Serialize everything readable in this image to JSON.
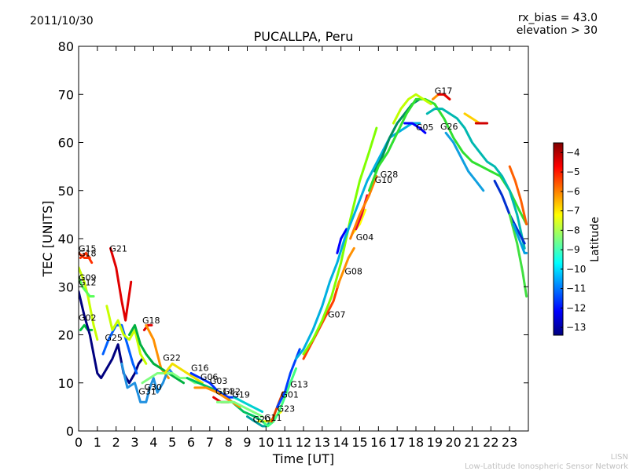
{
  "header": {
    "date": "2011/10/30",
    "rx_bias": "rx_bias = 43.0",
    "elevation": "elevation > 30"
  },
  "footer": {
    "line1": "LISN",
    "line2": "Low-Latitude Ionospheric Sensor Network"
  },
  "colorbar": {
    "label": "Latitude",
    "ticks": [
      "−4",
      "−5",
      "−6",
      "−7",
      "−8",
      "−9",
      "−10",
      "−11",
      "−12",
      "−13"
    ],
    "tick_values": [
      -4,
      -5,
      -6,
      -7,
      -8,
      -9,
      -10,
      -11,
      -12,
      -13
    ],
    "range": [
      -13.4,
      -3.5
    ],
    "colormap": [
      "#00007f",
      "#0000ff",
      "#007fff",
      "#00ffff",
      "#7fff7f",
      "#ffff00",
      "#ff7f00",
      "#ff0000",
      "#7f0000"
    ]
  },
  "chart_data": {
    "type": "line",
    "title": "PUCALLPA, Peru",
    "xlabel": "Time [UT]",
    "ylabel": "TEC [UNITS]",
    "xlim": [
      0,
      24
    ],
    "ylim": [
      0,
      80
    ],
    "x_ticks": [
      "0",
      "1",
      "2",
      "3",
      "4",
      "5",
      "6",
      "7",
      "8",
      "9",
      "10",
      "11",
      "12",
      "13",
      "14",
      "15",
      "16",
      "17",
      "18",
      "19",
      "20",
      "21",
      "22",
      "23"
    ],
    "x_tick_values": [
      0,
      1,
      2,
      3,
      4,
      5,
      6,
      7,
      8,
      9,
      10,
      11,
      12,
      13,
      14,
      15,
      16,
      17,
      18,
      19,
      20,
      21,
      22,
      23
    ],
    "y_ticks": [
      "0",
      "10",
      "20",
      "30",
      "40",
      "50",
      "60",
      "70",
      "80"
    ],
    "y_tick_values": [
      0,
      10,
      20,
      30,
      40,
      50,
      60,
      70,
      80
    ],
    "grid": false,
    "series": [
      {
        "name": "G15",
        "color": "#ff3000",
        "x": [
          0.0,
          0.3,
          0.6
        ],
        "y": [
          37,
          36,
          36
        ]
      },
      {
        "name": "G18",
        "color": "#ff3000",
        "x": [
          0.1,
          0.4,
          0.7
        ],
        "y": [
          36,
          37,
          35
        ]
      },
      {
        "name": "G21",
        "color": "#e00000",
        "x": [
          1.7,
          2.0,
          2.3,
          2.5,
          2.8
        ],
        "y": [
          38,
          34,
          27,
          23,
          31
        ]
      },
      {
        "name": "G09",
        "color": "#c8ff00",
        "x": [
          0.0,
          0.3,
          0.5,
          0.8,
          1.0
        ],
        "y": [
          34,
          31,
          28,
          22,
          19
        ]
      },
      {
        "name": "G12",
        "color": "#5aff5a",
        "x": [
          0.0,
          0.2,
          0.4,
          0.6,
          0.8
        ],
        "y": [
          32,
          30,
          29,
          28,
          28
        ]
      },
      {
        "name": "G02",
        "color": "#00c040",
        "x": [
          0.1,
          0.3,
          0.5,
          0.7
        ],
        "y": [
          21,
          22,
          21,
          21
        ]
      },
      {
        "name": "",
        "color": "#00007f",
        "x": [
          0.0,
          0.3,
          0.6,
          1.0,
          1.2,
          1.5,
          1.8,
          2.1,
          2.4,
          2.7,
          3.0,
          3.2,
          3.4
        ],
        "y": [
          29,
          24,
          20,
          12,
          11,
          13,
          15,
          18,
          12,
          10,
          12,
          14,
          15
        ]
      },
      {
        "name": "G25",
        "color": "#0060ff",
        "x": [
          1.3,
          1.6,
          2.0,
          2.3,
          2.6,
          2.9,
          3.1
        ],
        "y": [
          16,
          19,
          22,
          22,
          18,
          14,
          12
        ]
      },
      {
        "name": "",
        "color": "#c8ff00",
        "x": [
          1.5,
          1.8,
          2.1,
          2.4,
          2.7,
          3.0,
          3.3,
          3.6
        ],
        "y": [
          26,
          21,
          23,
          20,
          19,
          21,
          16,
          14
        ]
      },
      {
        "name": "G18",
        "color": "#e00000",
        "x": [
          3.5,
          3.7,
          3.9
        ],
        "y": [
          21,
          22,
          22
        ]
      },
      {
        "name": "",
        "color": "#ff9000",
        "x": [
          3.6,
          4.0,
          4.4,
          4.8
        ],
        "y": [
          22,
          19,
          13,
          11
        ]
      },
      {
        "name": "G22",
        "color": "#00b040",
        "x": [
          2.7,
          3.0,
          3.3,
          3.6,
          4.0,
          4.4,
          4.8,
          5.2,
          5.6
        ],
        "y": [
          20,
          22,
          18,
          16,
          14,
          13,
          12,
          11,
          10
        ]
      },
      {
        "name": "G31",
        "color": "#2090e0",
        "x": [
          2.3,
          2.6,
          3.0,
          3.3,
          3.6,
          3.8,
          4.0,
          4.2,
          4.5,
          4.8,
          5.0
        ],
        "y": [
          14,
          9,
          10,
          6,
          6,
          9,
          11,
          8,
          10,
          13,
          12
        ]
      },
      {
        "name": "G30",
        "color": "#80ff80",
        "x": [
          3.4,
          3.8,
          4.2,
          4.6,
          5.0,
          5.4,
          5.8,
          6.2,
          6.6
        ],
        "y": [
          10,
          11,
          12,
          12,
          12,
          11,
          11,
          10,
          10
        ]
      },
      {
        "name": "",
        "color": "#f0e000",
        "x": [
          4.6,
          5.0,
          5.4,
          5.8,
          6.2,
          6.6
        ],
        "y": [
          12,
          14,
          13,
          12,
          11,
          10
        ]
      },
      {
        "name": "G16",
        "color": "#00c060",
        "x": [
          5.8,
          6.4,
          7.0,
          7.6,
          8.2,
          8.8,
          9.4,
          9.8
        ],
        "y": [
          11,
          10,
          9,
          8,
          6,
          4,
          3,
          2
        ]
      },
      {
        "name": "G06",
        "color": "#0030ff",
        "x": [
          6.0,
          6.5,
          7.0,
          7.5,
          8.0,
          8.4
        ],
        "y": [
          12,
          11,
          10,
          8,
          7,
          7
        ]
      },
      {
        "name": "G03",
        "color": "#ff9000",
        "x": [
          6.2,
          6.8,
          7.4,
          7.8,
          8.2,
          8.6
        ],
        "y": [
          9,
          9,
          8,
          7,
          6,
          5
        ]
      },
      {
        "name": "G14",
        "color": "#e00000",
        "x": [
          7.2,
          7.6,
          8.0
        ],
        "y": [
          7,
          6,
          6
        ]
      },
      {
        "name": "G32",
        "color": "#7fff7f",
        "x": [
          7.4,
          7.8,
          8.3,
          8.8,
          9.3,
          9.8
        ],
        "y": [
          6,
          6,
          6,
          5,
          4,
          3
        ]
      },
      {
        "name": "G19",
        "color": "#00d0d0",
        "x": [
          8.3,
          8.8,
          9.3,
          9.8
        ],
        "y": [
          7,
          6,
          5,
          4
        ]
      },
      {
        "name": "G20",
        "color": "#00a0a0",
        "x": [
          9.0,
          9.4,
          9.8,
          10.0,
          10.3
        ],
        "y": [
          3,
          2,
          1,
          1,
          2
        ]
      },
      {
        "name": "G11",
        "color": "#ffff00",
        "x": [
          9.6,
          9.9,
          10.2,
          10.5,
          10.8
        ],
        "y": [
          2,
          2,
          2,
          3,
          4
        ]
      },
      {
        "name": "G23",
        "color": "#40ff80",
        "x": [
          9.8,
          10.1,
          10.4,
          10.7,
          11.0,
          11.3,
          11.6
        ],
        "y": [
          2,
          1,
          2,
          4,
          7,
          10,
          13
        ]
      },
      {
        "name": "G01",
        "color": "#e04000",
        "x": [
          10.3,
          10.6,
          10.9
        ],
        "y": [
          2,
          5,
          8
        ]
      },
      {
        "name": "G13",
        "color": "#0040ff",
        "x": [
          10.6,
          11.0,
          11.3,
          11.6,
          11.8
        ],
        "y": [
          5,
          8,
          12,
          15,
          17
        ]
      },
      {
        "name": "G07",
        "color": "#ff4000",
        "x": [
          12.0,
          12.4,
          12.8,
          13.2,
          13.6,
          13.9
        ],
        "y": [
          15,
          18,
          21,
          24,
          27,
          31
        ]
      },
      {
        "name": "G08",
        "color": "#ff9000",
        "x": [
          13.8,
          14.1,
          14.4,
          14.7
        ],
        "y": [
          30,
          33,
          36,
          38
        ]
      },
      {
        "name": "G04",
        "color": "#0000ff",
        "x": [
          13.8,
          14.0,
          14.3
        ],
        "y": [
          37,
          40,
          42
        ]
      },
      {
        "name": "",
        "color": "#ffff00",
        "x": [
          14.6,
          15.0,
          15.3
        ],
        "y": [
          41,
          43,
          46
        ]
      },
      {
        "name": "",
        "color": "#e00040",
        "x": [
          14.8,
          15.1,
          15.4
        ],
        "y": [
          42,
          45,
          49
        ]
      },
      {
        "name": "",
        "color": "#7fff00",
        "x": [
          12.0,
          12.5,
          13.0,
          13.5,
          14.0,
          14.5,
          15.0,
          15.5,
          15.9
        ],
        "y": [
          16,
          19,
          23,
          28,
          35,
          44,
          52,
          58,
          63
        ]
      },
      {
        "name": "",
        "color": "#00b0e0",
        "x": [
          11.6,
          12.0,
          12.5,
          13.0,
          13.4,
          13.8,
          14.2,
          14.6,
          15.0,
          15.4,
          15.8,
          16.2,
          16.6,
          17.0,
          17.4,
          17.8,
          18.2
        ],
        "y": [
          15,
          17,
          21,
          26,
          31,
          35,
          40,
          44,
          48,
          52,
          55,
          58,
          61,
          62,
          63,
          64,
          64
        ]
      },
      {
        "name": "G10",
        "color": "#ff8000",
        "x": [
          14.5,
          15.0,
          15.5,
          15.9
        ],
        "y": [
          40,
          45,
          49,
          53
        ]
      },
      {
        "name": "G28",
        "color": "#009060",
        "x": [
          15.8,
          16.2,
          16.6,
          17.0,
          17.4,
          17.8,
          18.2
        ],
        "y": [
          54,
          57,
          61,
          64,
          66,
          68,
          69
        ]
      },
      {
        "name": "",
        "color": "#30e030",
        "x": [
          15.5,
          16.0,
          16.5,
          17.0,
          17.5,
          18.0,
          18.5,
          19.0,
          19.5,
          20.0,
          20.5,
          21.0,
          21.5,
          22.0,
          22.5,
          23.0,
          23.5,
          23.9
        ],
        "y": [
          50,
          55,
          58,
          62,
          66,
          69,
          69,
          68,
          65,
          61,
          58,
          56,
          55,
          54,
          53,
          50,
          46,
          43
        ]
      },
      {
        "name": "G05",
        "color": "#0000ff",
        "x": [
          17.4,
          17.8,
          18.2,
          18.5
        ],
        "y": [
          64,
          64,
          63,
          62
        ]
      },
      {
        "name": "",
        "color": "#c0ff00",
        "x": [
          16.8,
          17.2,
          17.6,
          18.0,
          18.4,
          18.8
        ],
        "y": [
          64,
          67,
          69,
          70,
          69,
          68
        ]
      },
      {
        "name": "G17",
        "color": "#ff9000",
        "x": [
          18.9,
          19.2,
          19.5,
          19.8
        ],
        "y": [
          69,
          70,
          70,
          69
        ]
      },
      {
        "name": "",
        "color": "#e00000",
        "x": [
          19.2,
          19.5,
          19.8
        ],
        "y": [
          70,
          70,
          69
        ]
      },
      {
        "name": "G26",
        "color": "#00b8b0",
        "x": [
          18.6,
          19.0,
          19.4,
          19.8,
          20.2,
          20.6,
          21.0,
          21.4,
          21.8,
          22.2,
          22.6,
          23.0,
          23.4,
          23.8
        ],
        "y": [
          66,
          67,
          67,
          66,
          65,
          63,
          60,
          58,
          56,
          55,
          53,
          50,
          45,
          38
        ]
      },
      {
        "name": "",
        "color": "#10a0e0",
        "x": [
          19.6,
          20.0,
          20.4,
          20.8,
          21.2,
          21.6
        ],
        "y": [
          62,
          60,
          57,
          54,
          52,
          50
        ]
      },
      {
        "name": "",
        "color": "#ffd000",
        "x": [
          20.6,
          21.0,
          21.4
        ],
        "y": [
          66,
          65,
          64
        ]
      },
      {
        "name": "",
        "color": "#d00000",
        "x": [
          21.2,
          21.5,
          21.8
        ],
        "y": [
          64,
          64,
          64
        ]
      },
      {
        "name": "",
        "color": "#0030d0",
        "x": [
          22.2,
          22.6,
          23.0,
          23.4,
          23.8
        ],
        "y": [
          52,
          49,
          45,
          42,
          39
        ]
      },
      {
        "name": "",
        "color": "#ff6000",
        "x": [
          23.0,
          23.3,
          23.6,
          23.9
        ],
        "y": [
          55,
          52,
          48,
          43
        ]
      },
      {
        "name": "",
        "color": "#40e040",
        "x": [
          23.0,
          23.4,
          23.7,
          23.9
        ],
        "y": [
          45,
          39,
          33,
          28
        ]
      },
      {
        "name": "",
        "color": "#00a0e0",
        "x": [
          23.2,
          23.5,
          23.8,
          23.9
        ],
        "y": [
          43,
          40,
          37,
          37
        ]
      }
    ],
    "point_labels": [
      {
        "text": "G15",
        "x": 0.0,
        "y": 37.3
      },
      {
        "text": "G18",
        "x": 0.0,
        "y": 36.3
      },
      {
        "text": "G21",
        "x": 1.65,
        "y": 37.3
      },
      {
        "text": "G09",
        "x": 0.0,
        "y": 31.3
      },
      {
        "text": "G12",
        "x": 0.0,
        "y": 30.3
      },
      {
        "text": "G02",
        "x": 0.0,
        "y": 22.9
      },
      {
        "text": "G25",
        "x": 1.4,
        "y": 18.8
      },
      {
        "text": "G18",
        "x": 3.4,
        "y": 22.4
      },
      {
        "text": "G22",
        "x": 4.5,
        "y": 14.6
      },
      {
        "text": "G16",
        "x": 6.0,
        "y": 12.5
      },
      {
        "text": "G06",
        "x": 6.5,
        "y": 10.6
      },
      {
        "text": "G30",
        "x": 3.5,
        "y": 8.5
      },
      {
        "text": "G31",
        "x": 3.2,
        "y": 7.6
      },
      {
        "text": "G03",
        "x": 7.0,
        "y": 9.8
      },
      {
        "text": "G14",
        "x": 7.3,
        "y": 7.6
      },
      {
        "text": "G32",
        "x": 7.7,
        "y": 7.6
      },
      {
        "text": "G19",
        "x": 8.2,
        "y": 6.9
      },
      {
        "text": "G13",
        "x": 11.3,
        "y": 9.1
      },
      {
        "text": "G01",
        "x": 10.8,
        "y": 6.9
      },
      {
        "text": "G23",
        "x": 10.6,
        "y": 4.0
      },
      {
        "text": "G20",
        "x": 9.3,
        "y": 1.8
      },
      {
        "text": "G11",
        "x": 9.9,
        "y": 2.1
      },
      {
        "text": "G07",
        "x": 13.3,
        "y": 23.6
      },
      {
        "text": "G08",
        "x": 14.2,
        "y": 32.6
      },
      {
        "text": "G04",
        "x": 14.8,
        "y": 39.7
      },
      {
        "text": "G10",
        "x": 15.8,
        "y": 51.6
      },
      {
        "text": "G28",
        "x": 16.1,
        "y": 52.7
      },
      {
        "text": "G05",
        "x": 18.0,
        "y": 62.5
      },
      {
        "text": "G26",
        "x": 19.3,
        "y": 62.7
      },
      {
        "text": "G17",
        "x": 19.0,
        "y": 70.1
      }
    ]
  }
}
